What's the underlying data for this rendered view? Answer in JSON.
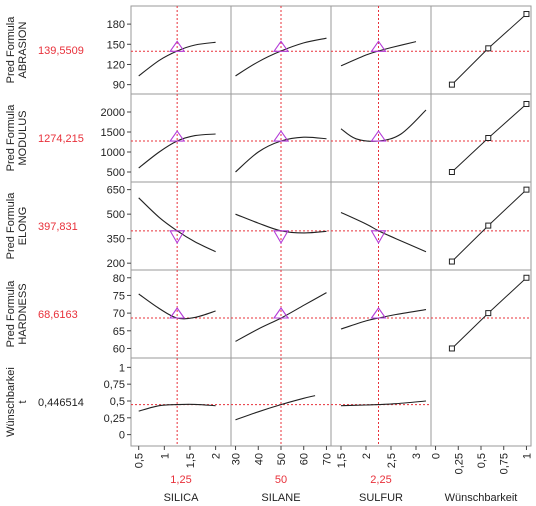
{
  "chart_data": {
    "type": "line",
    "title": "",
    "colors": {
      "curve": "#222222",
      "current": "#e8303a",
      "marker": "#b43cd8",
      "frame": "#9a9a9a"
    },
    "responses": [
      {
        "name": "Pred Formula ABRASION",
        "label_lines": [
          "Pred Formula",
          "ABRASION"
        ],
        "current_display": "139,5509",
        "current": 139.5509,
        "ylim": [
          85,
          198
        ],
        "ticks": [
          {
            "v": 90,
            "label": "90"
          },
          {
            "v": 120,
            "label": "120"
          },
          {
            "v": 150,
            "label": "150"
          },
          {
            "v": 180,
            "label": "180"
          }
        ]
      },
      {
        "name": "Pred Formula MODULUS",
        "label_lines": [
          "Pred Formula",
          "MODULUS"
        ],
        "current_display": "1274,215",
        "current": 1274.215,
        "ylim": [
          400,
          2300
        ],
        "ticks": [
          {
            "v": 500,
            "label": "500"
          },
          {
            "v": 1000,
            "label": "1000"
          },
          {
            "v": 1500,
            "label": "1500"
          },
          {
            "v": 2000,
            "label": "2000"
          }
        ]
      },
      {
        "name": "Pred Formula ELONG",
        "label_lines": [
          "Pred Formula",
          "ELONG"
        ],
        "current_display": "397,831",
        "current": 397.831,
        "ylim": [
          195,
          660
        ],
        "ticks": [
          {
            "v": 200,
            "label": "200"
          },
          {
            "v": 350,
            "label": "350"
          },
          {
            "v": 500,
            "label": "500"
          },
          {
            "v": 650,
            "label": "650"
          }
        ]
      },
      {
        "name": "Pred Formula HARDNESS",
        "label_lines": [
          "Pred Formula",
          "HARDNESS"
        ],
        "current_display": "68,6163",
        "current": 68.6163,
        "ylim": [
          59,
          80.5
        ],
        "ticks": [
          {
            "v": 60,
            "label": "60"
          },
          {
            "v": 65,
            "label": "65"
          },
          {
            "v": 70,
            "label": "70"
          },
          {
            "v": 75,
            "label": "75"
          },
          {
            "v": 80,
            "label": "80"
          }
        ]
      },
      {
        "name": "Wünschbarkeit",
        "label_lines": [
          "Wünschbarkei",
          "t"
        ],
        "current_display": "0,446514",
        "current": 0.446514,
        "ylim": [
          -0.08,
          1.05
        ],
        "ticks": [
          {
            "v": 0,
            "label": "0"
          },
          {
            "v": 0.25,
            "label": "0,25"
          },
          {
            "v": 0.5,
            "label": "0,5"
          },
          {
            "v": 0.75,
            "label": "0,75"
          },
          {
            "v": 1,
            "label": "1"
          }
        ]
      }
    ],
    "factors": [
      {
        "name": "SILICA",
        "current_display": "1,25",
        "current": 1.25,
        "xlim": [
          0.35,
          2.3
        ],
        "ticks": [
          {
            "v": 0.5,
            "label": "0,5"
          },
          {
            "v": 1,
            "label": "1"
          },
          {
            "v": 1.5,
            "label": "1,5"
          },
          {
            "v": 2,
            "label": "2"
          }
        ]
      },
      {
        "name": "SILANE",
        "current_display": "50",
        "current": 50,
        "xlim": [
          28,
          72
        ],
        "ticks": [
          {
            "v": 30,
            "label": "30"
          },
          {
            "v": 40,
            "label": "40"
          },
          {
            "v": 50,
            "label": "50"
          },
          {
            "v": 60,
            "label": "60"
          },
          {
            "v": 70,
            "label": "70"
          }
        ]
      },
      {
        "name": "SULFUR",
        "current_display": "2,25",
        "current": 2.25,
        "xlim": [
          1.3,
          3.3
        ],
        "ticks": [
          {
            "v": 1.5,
            "label": "1,5"
          },
          {
            "v": 2,
            "label": "2"
          },
          {
            "v": 2.5,
            "label": "2,5"
          },
          {
            "v": 3,
            "label": "3"
          }
        ]
      }
    ],
    "desirability_column": {
      "title": "Wünschbarkeit",
      "xlim": [
        -0.05,
        1.05
      ],
      "ticks": [
        {
          "v": 0,
          "label": "0"
        },
        {
          "v": 0.25,
          "label": "0,25"
        },
        {
          "v": 0.5,
          "label": "0,5"
        },
        {
          "v": 0.75,
          "label": "0,75"
        },
        {
          "v": 1,
          "label": "1"
        }
      ],
      "functions": [
        {
          "response": "Pred Formula ABRASION",
          "x": [
            0.18,
            0.58,
            1.0
          ],
          "y": [
            90,
            144,
            195
          ]
        },
        {
          "response": "Pred Formula MODULUS",
          "x": [
            0.18,
            0.58,
            1.0
          ],
          "y": [
            500,
            1350,
            2200
          ]
        },
        {
          "response": "Pred Formula ELONG",
          "x": [
            0.18,
            0.58,
            1.0
          ],
          "y": [
            210,
            430,
            650
          ]
        },
        {
          "response": "Pred Formula HARDNESS",
          "x": [
            0.18,
            0.58,
            1.0
          ],
          "y": [
            60,
            70,
            80
          ]
        }
      ]
    },
    "curves": [
      [
        {
          "x": [
            0.5,
            0.9,
            1.25,
            1.6,
            2.0
          ],
          "y": [
            103,
            126,
            140,
            149,
            153
          ]
        },
        {
          "x": [
            30,
            40,
            50,
            60,
            70
          ],
          "y": [
            103,
            124,
            140,
            152,
            159
          ]
        },
        {
          "x": [
            1.5,
            2.0,
            2.25,
            2.5,
            3.0
          ],
          "y": [
            118,
            134,
            140,
            145,
            154
          ]
        }
      ],
      [
        {
          "x": [
            0.5,
            0.9,
            1.25,
            1.6,
            2.0
          ],
          "y": [
            600,
            1000,
            1274,
            1410,
            1450
          ]
        },
        {
          "x": [
            30,
            40,
            50,
            60,
            70
          ],
          "y": [
            500,
            1000,
            1274,
            1370,
            1330
          ]
        },
        {
          "x": [
            1.5,
            1.8,
            2.25,
            2.7,
            3.2
          ],
          "y": [
            1580,
            1330,
            1274,
            1450,
            2050
          ]
        }
      ],
      [
        {
          "x": [
            0.5,
            0.9,
            1.25,
            1.6,
            2.0
          ],
          "y": [
            600,
            480,
            398,
            330,
            270
          ]
        },
        {
          "x": [
            30,
            40,
            50,
            60,
            70
          ],
          "y": [
            500,
            445,
            398,
            385,
            395
          ]
        },
        {
          "x": [
            1.5,
            2.0,
            2.25,
            2.6,
            3.2
          ],
          "y": [
            510,
            440,
            398,
            350,
            270
          ]
        }
      ],
      [
        {
          "x": [
            0.5,
            0.9,
            1.25,
            1.6,
            2.0
          ],
          "y": [
            75.4,
            71.3,
            68.6,
            68.8,
            70.6
          ]
        },
        {
          "x": [
            30,
            40,
            50,
            60,
            70
          ],
          "y": [
            62,
            65.5,
            68.6,
            72.2,
            75.8
          ]
        },
        {
          "x": [
            1.5,
            2.0,
            2.25,
            2.6,
            3.2
          ],
          "y": [
            65.5,
            67.8,
            68.6,
            69.6,
            71.0
          ]
        }
      ],
      [
        {
          "x": [
            0.5,
            0.9,
            1.25,
            1.6,
            2.0
          ],
          "y": [
            0.35,
            0.43,
            0.447,
            0.45,
            0.43
          ]
        },
        {
          "x": [
            30,
            40,
            50,
            60,
            65
          ],
          "y": [
            0.22,
            0.34,
            0.447,
            0.54,
            0.58
          ]
        },
        {
          "x": [
            1.5,
            2.0,
            2.25,
            2.6,
            3.2
          ],
          "y": [
            0.43,
            0.44,
            0.447,
            0.46,
            0.5
          ]
        }
      ]
    ],
    "grid": false,
    "legend": "none"
  }
}
